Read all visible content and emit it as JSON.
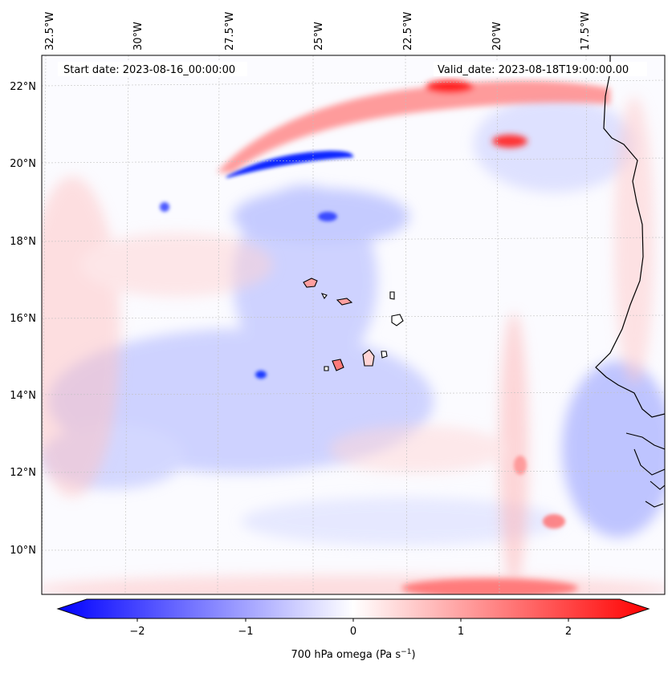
{
  "header": {
    "start_date": "Start date: 2023-08-16_00:00:00",
    "valid_date": "Valid_date: 2023-08-18T19:00:00.00"
  },
  "map": {
    "field": "700 hPa vertical velocity (omega)",
    "region": "Eastern tropical Atlantic, Cape Verde islands and West African coast",
    "lon_labels": [
      "32.5°W",
      "30°W",
      "27.5°W",
      "25°W",
      "22.5°W",
      "20°W",
      "17.5°W"
    ],
    "lat_labels": [
      "22°N",
      "20°N",
      "18°N",
      "16°N",
      "14°N",
      "12°N",
      "10°N"
    ],
    "colors": {
      "negative": "#0000ff",
      "neutral": "#ffffff",
      "positive": "#ff0000",
      "coast": "#000000"
    }
  },
  "colorbar": {
    "label_main": "700 hPa omega (Pa s",
    "label_sup": "−1",
    "label_end": ")",
    "tick_labels": [
      "−2",
      "−1",
      "0",
      "1",
      "2"
    ],
    "range": [
      -2.6,
      2.6
    ]
  }
}
